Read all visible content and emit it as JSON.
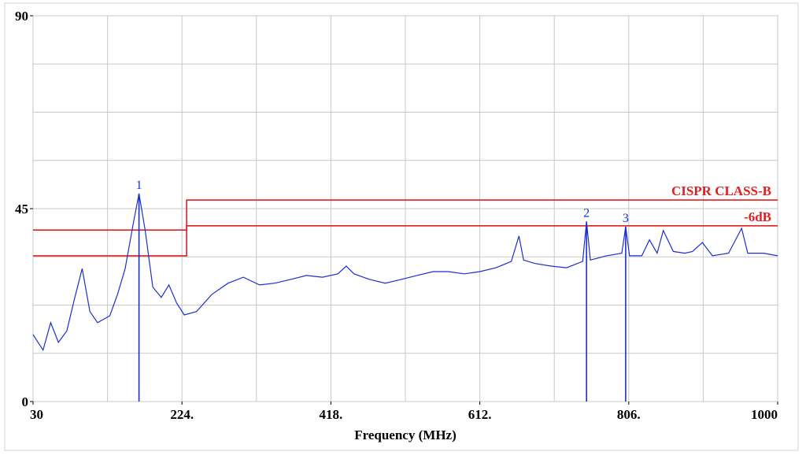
{
  "chart_data": {
    "type": "line",
    "xlabel": "Frequency (MHz)",
    "xlim": [
      30,
      1000
    ],
    "ylim": [
      0,
      90
    ],
    "xticks": [
      30,
      {
        "value": 224,
        "label": "224."
      },
      {
        "value": 418,
        "label": "418."
      },
      {
        "value": 612,
        "label": "612."
      },
      {
        "value": 806,
        "label": "806."
      },
      1000
    ],
    "yticks": [
      0,
      45,
      90
    ],
    "xgrid": [
      30,
      127,
      224,
      321,
      418,
      515,
      612,
      709,
      806,
      903,
      1000
    ],
    "ygrid": [
      0,
      11.25,
      22.5,
      33.75,
      45,
      56.25,
      67.5,
      78.75,
      90
    ],
    "series": [
      {
        "name": "CISPR CLASS-B",
        "color": "#e02020",
        "x": [
          30,
          230,
          230,
          1000
        ],
        "values": [
          40,
          40,
          47,
          47
        ]
      },
      {
        "name": "-6dB",
        "color": "#e02020",
        "x": [
          30,
          230,
          230,
          1000
        ],
        "values": [
          34,
          34,
          41,
          41
        ]
      },
      {
        "color": "#1a2fd0",
        "x": [
          30,
          43,
          53,
          63,
          74,
          84,
          94,
          104,
          114,
          130,
          140,
          150,
          161,
          168,
          176,
          186,
          197,
          207,
          217,
          227,
          243,
          263,
          284,
          304,
          325,
          345,
          366,
          386,
          407,
          427,
          438,
          448,
          468,
          489,
          510,
          530,
          551,
          571,
          592,
          612,
          633,
          653,
          663,
          669,
          684,
          705,
          725,
          746,
          751,
          756,
          777,
          797,
          802,
          807,
          823,
          833,
          843,
          851,
          864,
          879,
          889,
          902,
          915,
          936,
          953,
          961,
          982,
          1000
        ],
        "values": [
          15.6,
          12,
          18.4,
          13.8,
          16.5,
          24,
          31,
          21,
          18.4,
          20,
          25,
          31,
          42,
          48.5,
          40,
          26.7,
          24.3,
          27.2,
          23,
          20.2,
          21,
          25,
          27.6,
          29,
          27.2,
          27.6,
          28.5,
          29.4,
          29,
          29.8,
          31.6,
          29.8,
          28.5,
          27.6,
          28.5,
          29.4,
          30.3,
          30.3,
          29.8,
          30.3,
          31.2,
          32.7,
          38.6,
          33,
          32.2,
          31.6,
          31.2,
          32.7,
          42,
          33,
          34,
          34.6,
          40.8,
          34,
          34,
          37.7,
          34.6,
          39.9,
          35,
          34.6,
          35,
          37.1,
          34,
          34.6,
          40.4,
          34.6,
          34.6,
          34
        ]
      }
    ],
    "markers": {
      "labels": [
        "1",
        "2",
        "3"
      ],
      "x": [
        168,
        751,
        802
      ],
      "values": [
        48.5,
        42,
        40.8
      ],
      "color": "#1a2fd0"
    }
  }
}
